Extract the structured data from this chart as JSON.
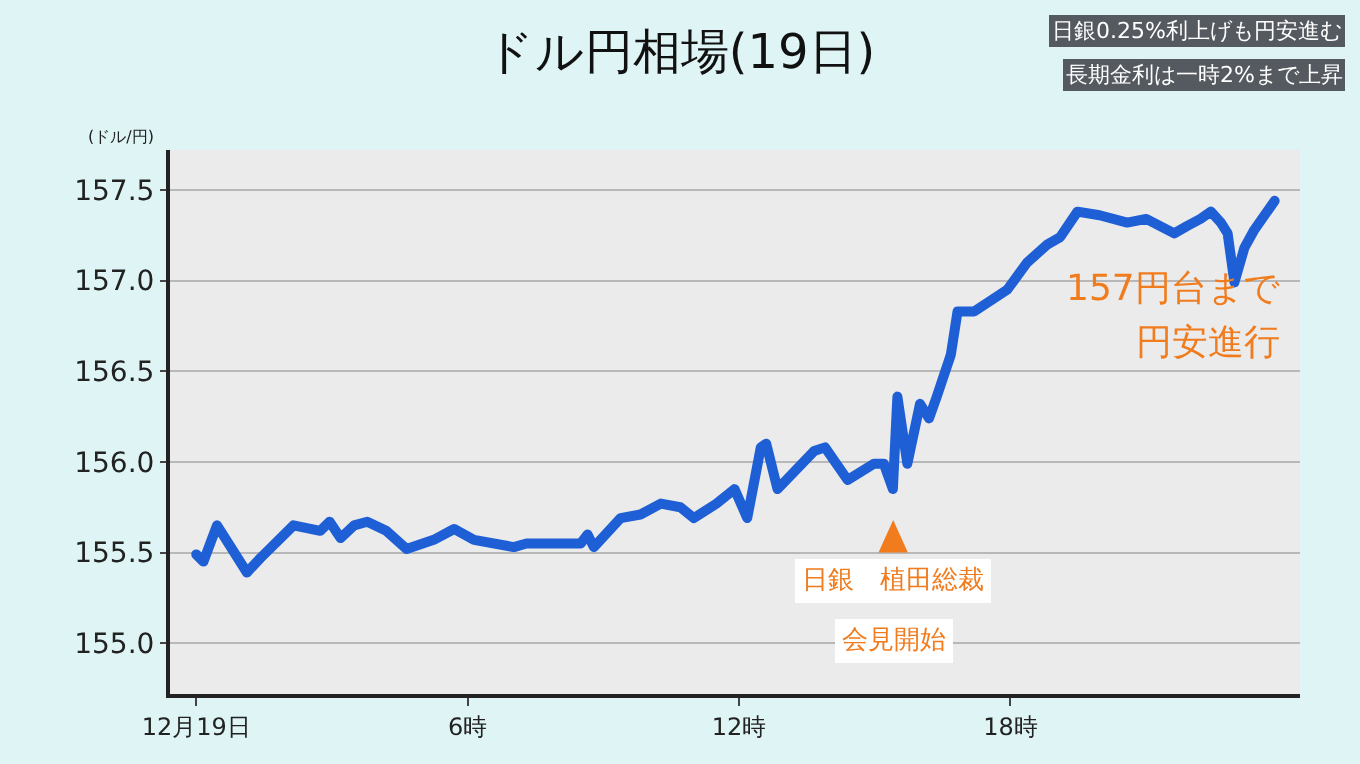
{
  "chart_data": {
    "type": "line",
    "title": "ドル円相場(19日)",
    "ylabel": "(ドル/円)",
    "x": [
      0,
      0.16,
      0.46,
      1.12,
      1.42,
      2.15,
      2.74,
      2.95,
      3.19,
      3.49,
      3.78,
      4.2,
      4.65,
      5.25,
      5.7,
      6.14,
      7.02,
      7.3,
      8.5,
      8.65,
      8.79,
      9.38,
      9.82,
      10.27,
      10.7,
      11.0,
      11.5,
      11.9,
      12.18,
      12.48,
      12.6,
      12.85,
      13.66,
      13.9,
      14.4,
      14.98,
      15.2,
      15.4,
      15.5,
      15.72,
      16.0,
      16.2,
      16.37,
      16.68,
      16.83,
      17.2,
      17.93,
      18.37,
      18.82,
      19.1,
      19.48,
      19.97,
      20.58,
      21.0,
      21.62,
      21.9,
      22.2,
      22.43,
      22.65,
      22.8,
      22.95,
      23.17,
      23.39,
      23.84
    ],
    "series": [
      {
        "color": "#1f5fd6",
        "values": [
          155.49,
          155.45,
          155.65,
          155.39,
          155.47,
          155.65,
          155.62,
          155.67,
          155.58,
          155.65,
          155.67,
          155.62,
          155.52,
          155.57,
          155.63,
          155.57,
          155.53,
          155.55,
          155.55,
          155.6,
          155.53,
          155.69,
          155.71,
          155.77,
          155.75,
          155.69,
          155.77,
          155.85,
          155.69,
          156.08,
          156.1,
          155.85,
          156.06,
          156.08,
          155.9,
          155.99,
          155.99,
          155.85,
          156.36,
          155.99,
          156.32,
          156.24,
          156.36,
          156.59,
          156.83,
          156.83,
          156.95,
          157.1,
          157.2,
          157.24,
          157.38,
          157.36,
          157.32,
          157.34,
          157.26,
          157.3,
          157.34,
          157.38,
          157.32,
          157.26,
          156.99,
          157.18,
          157.28,
          157.44
        ]
      }
    ],
    "xlim": [
      -0.58,
      24.4
    ],
    "xticks": [
      {
        "value": 0,
        "label": "12月19日"
      },
      {
        "value": 6,
        "label": "6時"
      },
      {
        "value": 12,
        "label": "12時"
      },
      {
        "value": 18,
        "label": "18時"
      }
    ],
    "ylim": [
      154.72,
      157.72
    ],
    "yticks": [
      {
        "value": 155,
        "label": "155.0"
      },
      {
        "value": 155.5,
        "label": "155.5"
      },
      {
        "value": 156,
        "label": "156.0"
      },
      {
        "value": 156.5,
        "label": "156.5"
      },
      {
        "value": 157,
        "label": "157.0"
      },
      {
        "value": 157.5,
        "label": "157.5"
      }
    ],
    "grid": "y",
    "marker": "none",
    "line_style": "solid",
    "annotations": [
      "日銀　植田総裁",
      "会見開始",
      "157円台まで",
      "円安進行",
      "日銀0.25%利上げも円安進む",
      "長期金利は一時2%まで上昇"
    ]
  }
}
